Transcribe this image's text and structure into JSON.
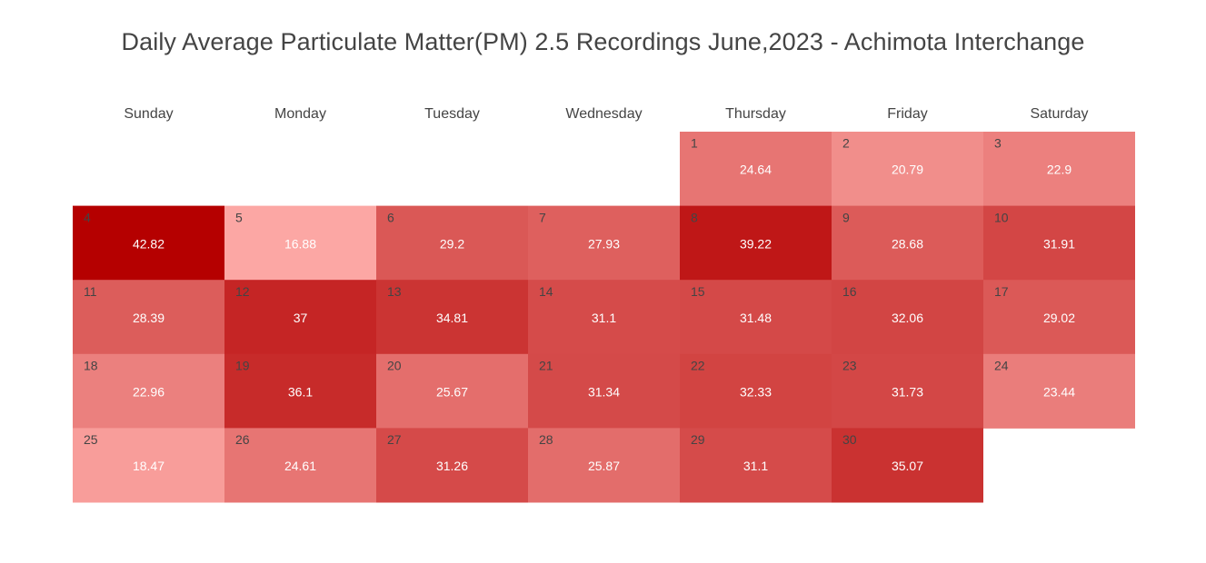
{
  "chart_data": {
    "type": "heatmap",
    "title": "Daily Average Particulate Matter(PM) 2.5 Recordings June,2023 - Achimota Interchange",
    "weekdays": [
      "Sunday",
      "Monday",
      "Tuesday",
      "Wednesday",
      "Thursday",
      "Friday",
      "Saturday"
    ],
    "first_weekday_index": 4,
    "days": [
      {
        "day": 1,
        "value": 24.64
      },
      {
        "day": 2,
        "value": 20.79
      },
      {
        "day": 3,
        "value": 22.9
      },
      {
        "day": 4,
        "value": 42.82
      },
      {
        "day": 5,
        "value": 16.88
      },
      {
        "day": 6,
        "value": 29.2
      },
      {
        "day": 7,
        "value": 27.93
      },
      {
        "day": 8,
        "value": 39.22
      },
      {
        "day": 9,
        "value": 28.68
      },
      {
        "day": 10,
        "value": 31.91
      },
      {
        "day": 11,
        "value": 28.39
      },
      {
        "day": 12,
        "value": 37
      },
      {
        "day": 13,
        "value": 34.81
      },
      {
        "day": 14,
        "value": 31.1
      },
      {
        "day": 15,
        "value": 31.48
      },
      {
        "day": 16,
        "value": 32.06
      },
      {
        "day": 17,
        "value": 29.02
      },
      {
        "day": 18,
        "value": 22.96
      },
      {
        "day": 19,
        "value": 36.1
      },
      {
        "day": 20,
        "value": 25.67
      },
      {
        "day": 21,
        "value": 31.34
      },
      {
        "day": 22,
        "value": 32.33
      },
      {
        "day": 23,
        "value": 31.73
      },
      {
        "day": 24,
        "value": 23.44
      },
      {
        "day": 25,
        "value": 18.47
      },
      {
        "day": 26,
        "value": 24.61
      },
      {
        "day": 27,
        "value": 31.26
      },
      {
        "day": 28,
        "value": 25.87
      },
      {
        "day": 29,
        "value": 31.1
      },
      {
        "day": 30,
        "value": 35.07
      }
    ],
    "value_range": [
      16.88,
      42.82
    ],
    "colors": {
      "low": "#fca7a4",
      "high": "#b50000",
      "day_number_text": "#444444",
      "value_text": "#ffffff",
      "weekday_text": "#444444",
      "background": "#ffffff"
    },
    "legend": "none",
    "grid": false
  }
}
